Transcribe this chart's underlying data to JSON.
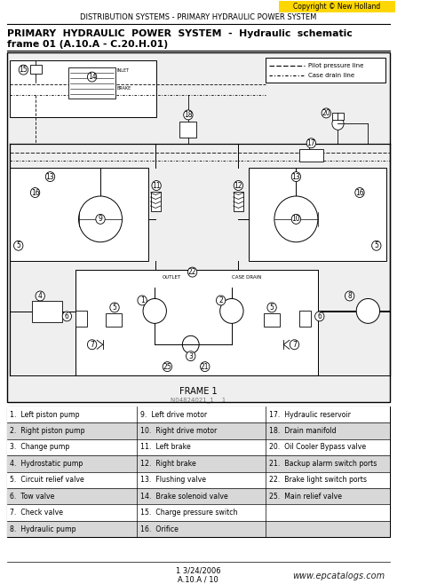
{
  "title_top": "DISTRIBUTION SYSTEMS - PRIMARY HYDRAULIC POWER SYSTEM",
  "title_main_line1": "PRIMARY  HYDRAULIC  POWER  SYSTEM  -  Hydraulic  schematic",
  "title_main_line2": "frame 01 (A.10.A - C.20.H.01)",
  "copyright_text": "Copyright © New Holland",
  "copyright_bg": "#FFD700",
  "diagram_ref": "FRAME 1",
  "diagram_code": "N04824021_1    1",
  "footer_date": "1 3/24/2006",
  "footer_ref": "A.10.A / 10",
  "footer_url": "www.epcatalogs.com",
  "legend_pilot": "Pilot pressure line",
  "legend_case": "Case drain line",
  "table_col1": [
    "1.  Left piston pump",
    "2.  Right piston pump",
    "3.  Change pump",
    "4.  Hydrostatic pump",
    "5.  Circuit relief valve",
    "6.  Tow valve",
    "7.  Check valve",
    "8.  Hydraulic pump"
  ],
  "table_col2": [
    "9.  Left drive motor",
    "10.  Right drive motor",
    "11.  Left brake",
    "12.  Right brake",
    "13.  Flushing valve",
    "14.  Brake solenoid valve",
    "15.  Charge pressure switch",
    "16.  Orifice"
  ],
  "table_col3": [
    "17.  Hydraulic reservoir",
    "18.  Drain manifold",
    "20.  Oil Cooler Bypass valve",
    "21.  Backup alarm switch ports",
    "22.  Brake light switch ports",
    "25.  Main relief valve",
    "",
    ""
  ],
  "bg_color": "#FFFFFF",
  "text_color": "#000000",
  "table_bg_odd": "#D8D8D8",
  "diag_bg": "#EFEFEF"
}
